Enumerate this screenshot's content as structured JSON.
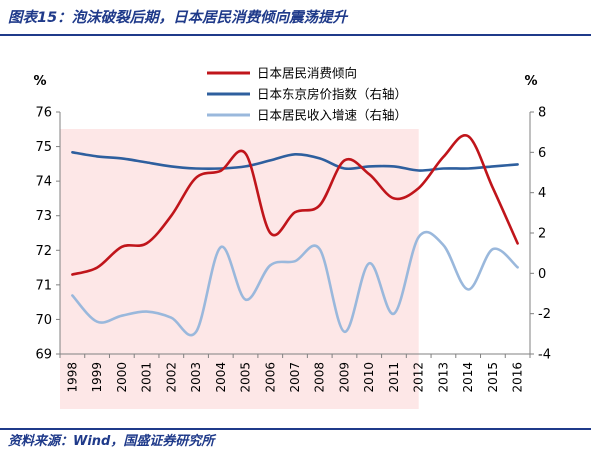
{
  "header": {
    "title": "图表15：泡沫破裂后期，日本居民消费倾向震荡提升"
  },
  "footer": {
    "source": "资料来源：Wind，国盛证券研究所"
  },
  "colors": {
    "consumption": "#c0151b",
    "housing_index": "#2e5f9e",
    "income_growth": "#9ab8dc",
    "shaded_region": "#fde7e7",
    "brand": "#1f3a8a"
  },
  "chart_data": {
    "type": "line",
    "categories": [
      "1998",
      "1999",
      "2000",
      "2001",
      "2002",
      "2003",
      "2004",
      "2005",
      "2006",
      "2007",
      "2008",
      "2009",
      "2010",
      "2011",
      "2012",
      "2013",
      "2014",
      "2015",
      "2016"
    ],
    "left_axis": {
      "unit": "%",
      "ylim": [
        69,
        76
      ],
      "ticks": [
        "69",
        "70",
        "71",
        "72",
        "73",
        "74",
        "75",
        "76"
      ]
    },
    "right_axis": {
      "unit": "%",
      "ylim": [
        -4,
        8
      ],
      "ticks": [
        "-4",
        "-2",
        "0",
        "2",
        "4",
        "6",
        "8"
      ]
    },
    "shaded_span": [
      "1998",
      "2012"
    ],
    "grid": false,
    "legend_position": "top-center",
    "series": [
      {
        "name": "日本居民消费倾向",
        "axis": "left",
        "color_key": "consumption",
        "line_width": 2.6,
        "values": [
          71.3,
          71.5,
          72.1,
          72.2,
          73.0,
          74.1,
          74.3,
          74.8,
          72.5,
          73.1,
          73.3,
          74.6,
          74.2,
          73.5,
          73.8,
          74.7,
          75.3,
          73.8,
          72.2
        ]
      },
      {
        "name": "日本东京房价指数（右轴）",
        "axis": "right",
        "color_key": "housing_index",
        "line_width": 2.6,
        "values": [
          6.0,
          5.8,
          5.7,
          5.5,
          5.3,
          5.2,
          5.2,
          5.3,
          5.6,
          5.9,
          5.7,
          5.2,
          5.3,
          5.3,
          5.1,
          5.2,
          5.2,
          5.3,
          5.4
        ]
      },
      {
        "name": "日本居民收入增速（右轴）",
        "axis": "right",
        "color_key": "income_growth",
        "line_width": 2.6,
        "values": [
          -1.1,
          -2.4,
          -2.1,
          -1.9,
          -2.2,
          -2.9,
          1.3,
          -1.3,
          0.4,
          0.6,
          1.2,
          -2.9,
          0.5,
          -2.0,
          1.8,
          1.4,
          -0.8,
          1.2,
          0.3
        ]
      }
    ]
  }
}
